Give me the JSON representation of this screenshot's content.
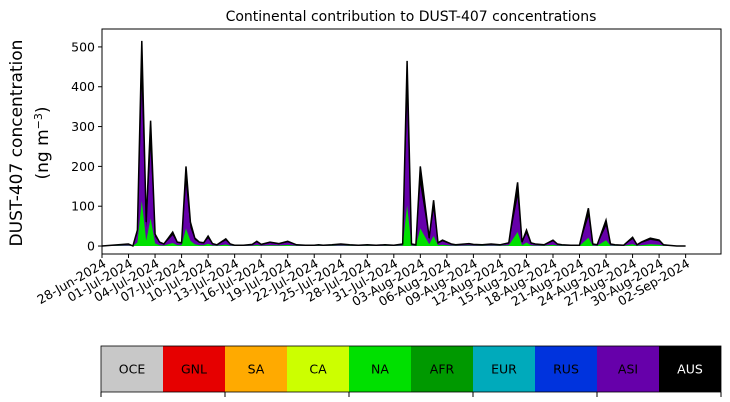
{
  "chart_data": {
    "type": "area",
    "title": "Continental contribution to DUST-407 concentrations",
    "ylabel_line1": "DUST-407 concentration",
    "ylabel_line2_prefix": "(ng m",
    "ylabel_line2_sup": "−3",
    "ylabel_line2_suffix": ")",
    "xlabel": "",
    "x_start": "2024-06-28",
    "x_end": "2024-09-06",
    "ylim": [
      -20,
      545
    ],
    "yticks": [
      0,
      100,
      200,
      300,
      400,
      500
    ],
    "xtick_labels": [
      "28-Jun-2024",
      "01-Jul-2024",
      "04-Jul-2024",
      "07-Jul-2024",
      "10-Jul-2024",
      "13-Jul-2024",
      "16-Jul-2024",
      "19-Jul-2024",
      "22-Jul-2024",
      "25-Jul-2024",
      "28-Jul-2024",
      "31-Jul-2024",
      "03-Aug-2024",
      "06-Aug-2024",
      "09-Aug-2024",
      "12-Aug-2024",
      "15-Aug-2024",
      "18-Aug-2024",
      "21-Aug-2024",
      "24-Aug-2024",
      "27-Aug-2024",
      "30-Aug-2024",
      "02-Sep-2024"
    ],
    "grid": false,
    "total_series": {
      "name": "",
      "x": [
        "2024-06-28",
        "2024-07-01",
        "2024-07-01T12:00",
        "2024-07-02",
        "2024-07-02T12:00",
        "2024-07-03",
        "2024-07-03T12:00",
        "2024-07-04",
        "2024-07-04T12:00",
        "2024-07-05",
        "2024-07-05T12:00",
        "2024-07-06",
        "2024-07-06T12:00",
        "2024-07-07",
        "2024-07-07T12:00",
        "2024-07-08",
        "2024-07-08T12:00",
        "2024-07-09",
        "2024-07-09T12:00",
        "2024-07-10",
        "2024-07-10T12:00",
        "2024-07-11",
        "2024-07-12",
        "2024-07-12T12:00",
        "2024-07-13",
        "2024-07-14",
        "2024-07-15",
        "2024-07-15T12:00",
        "2024-07-16",
        "2024-07-17",
        "2024-07-18",
        "2024-07-19",
        "2024-07-20",
        "2024-07-21",
        "2024-07-22",
        "2024-07-22T12:00",
        "2024-07-23",
        "2024-07-24",
        "2024-07-25",
        "2024-07-26",
        "2024-07-27",
        "2024-07-28",
        "2024-07-29",
        "2024-07-30",
        "2024-07-31",
        "2024-08-01",
        "2024-08-01T12:00",
        "2024-08-02",
        "2024-08-02T12:00",
        "2024-08-03",
        "2024-08-04",
        "2024-08-04T12:00",
        "2024-08-05",
        "2024-08-05T12:00",
        "2024-08-06",
        "2024-08-06T12:00",
        "2024-08-07",
        "2024-08-07T12:00",
        "2024-08-08",
        "2024-08-08T12:00",
        "2024-08-09",
        "2024-08-10",
        "2024-08-11",
        "2024-08-12",
        "2024-08-13",
        "2024-08-14",
        "2024-08-14T12:00",
        "2024-08-15",
        "2024-08-15T12:00",
        "2024-08-16",
        "2024-08-17",
        "2024-08-18",
        "2024-08-18T12:00",
        "2024-08-19",
        "2024-08-20",
        "2024-08-21",
        "2024-08-22",
        "2024-08-22T12:00",
        "2024-08-23",
        "2024-08-24",
        "2024-08-24T12:00",
        "2024-08-25",
        "2024-08-26",
        "2024-08-27",
        "2024-08-27T12:00",
        "2024-08-28",
        "2024-08-29",
        "2024-08-30",
        "2024-08-30T12:00",
        "2024-08-31",
        "2024-09-01",
        "2024-09-02"
      ],
      "y": [
        0,
        5,
        0,
        40,
        515,
        60,
        315,
        30,
        10,
        5,
        20,
        35,
        10,
        8,
        200,
        60,
        20,
        10,
        8,
        25,
        6,
        3,
        18,
        5,
        2,
        2,
        4,
        12,
        4,
        10,
        6,
        12,
        3,
        2,
        2,
        3,
        2,
        3,
        5,
        3,
        2,
        3,
        2,
        3,
        2,
        5,
        465,
        5,
        3,
        200,
        20,
        115,
        8,
        15,
        10,
        5,
        3,
        4,
        5,
        6,
        4,
        3,
        5,
        3,
        8,
        160,
        10,
        40,
        8,
        5,
        3,
        15,
        5,
        3,
        2,
        2,
        95,
        5,
        3,
        65,
        5,
        3,
        2,
        22,
        3,
        10,
        20,
        15,
        3,
        2,
        0,
        0
      ]
    },
    "regions": [
      {
        "name": "OCE",
        "color": "#c8c8c8"
      },
      {
        "name": "GNL",
        "color": "#e60000"
      },
      {
        "name": "SA",
        "color": "#ffaa00"
      },
      {
        "name": "CA",
        "color": "#ccff00"
      },
      {
        "name": "NA",
        "color": "#00e000"
      },
      {
        "name": "AFR",
        "color": "#009900"
      },
      {
        "name": "EUR",
        "color": "#00aabb"
      },
      {
        "name": "RUS",
        "color": "#0033dd"
      },
      {
        "name": "ASI",
        "color": "#6600aa"
      },
      {
        "name": "AUS",
        "color": "#000000"
      }
    ],
    "stacked_fractions": {
      "NA": 0.22,
      "ASI": 0.55
    }
  }
}
